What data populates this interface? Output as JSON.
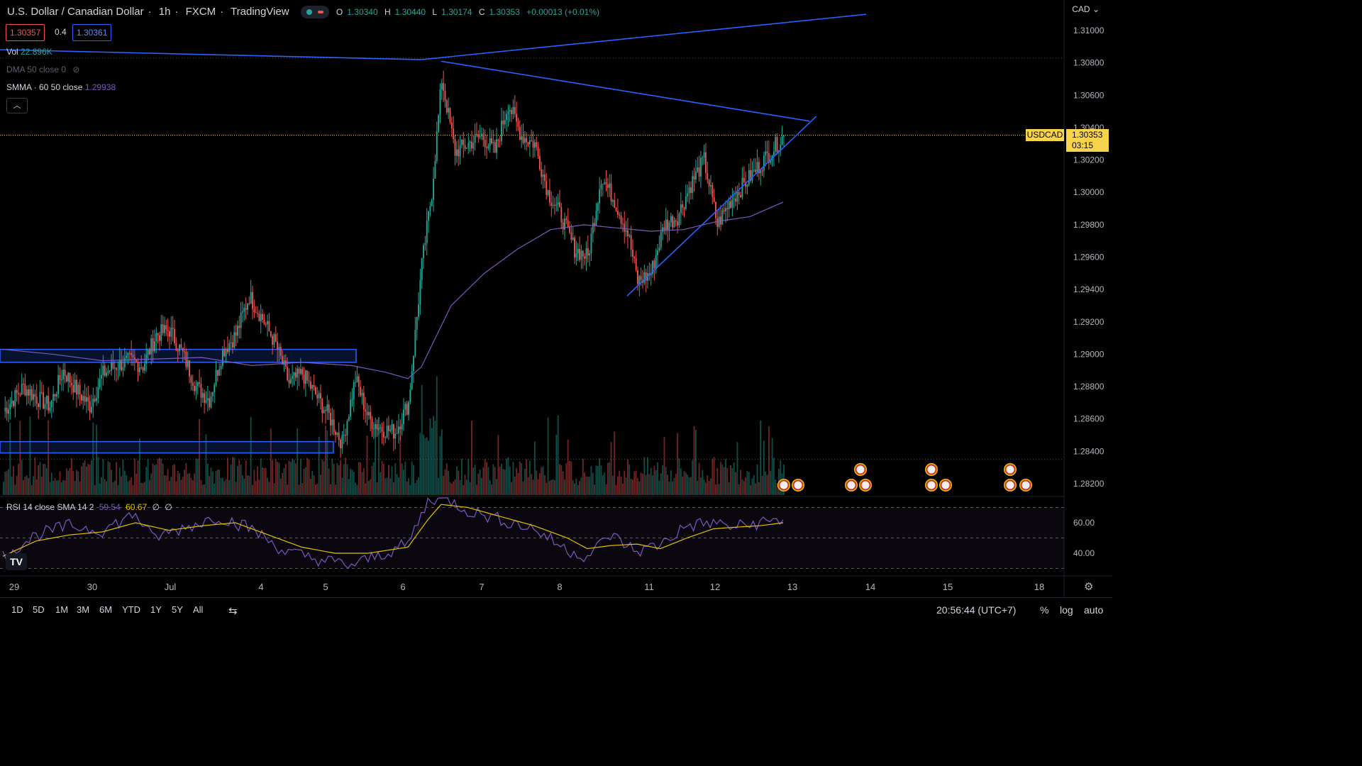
{
  "header": {
    "title": "U.S. Dollar / Canadian Dollar",
    "interval": "1h",
    "exchange": "FXCM",
    "source": "TradingView",
    "ohlc": {
      "o_label": "O",
      "o": "1.30340",
      "h_label": "H",
      "h": "1.30440",
      "l_label": "L",
      "l": "1.30174",
      "c_label": "C",
      "c": "1.30353",
      "change": "+0.00013 (+0.01%)"
    },
    "bid": "1.30357",
    "spread": "0.4",
    "ask": "1.30361",
    "currency": "CAD"
  },
  "legend": {
    "vol_label": "Vol",
    "vol_value": "22.896K",
    "dma_label": "DMA 50 close 0",
    "smma_label": "SMMA · 60 50 close",
    "smma_value": "1.29938",
    "collapse_icon": "chevron-up-icon"
  },
  "rsi_legend": {
    "label": "RSI 14 close SMA 14 2",
    "rsi_value": "59.54",
    "sma_value": "60.67",
    "extra1": "∅",
    "extra2": "∅"
  },
  "price_tag": {
    "symbol": "USDCAD",
    "price": "1.30353",
    "countdown": "03:15"
  },
  "time_axis": [
    "29",
    "30",
    "Jul",
    "4",
    "5",
    "6",
    "7",
    "8",
    "11",
    "12",
    "13",
    "14",
    "15",
    "18"
  ],
  "bottom": {
    "ranges": [
      "1D",
      "5D",
      "1M",
      "3M",
      "6M",
      "YTD",
      "1Y",
      "5Y",
      "All"
    ],
    "clock": "20:56:44 (UTC+7)",
    "percent": "%",
    "log": "log",
    "auto": "auto"
  },
  "colors": {
    "up": "#26a69a",
    "down": "#ef5350",
    "trendline": "#2962ff",
    "smma": "#7e57c2",
    "rsi": "#7e57c2",
    "rsi_sma": "#e5c100",
    "price_tag": "#f7d44c",
    "bg": "#000000"
  },
  "chart_data": [
    {
      "type": "candlestick",
      "title": "U.S. Dollar / Canadian Dollar · 1h · FXCM",
      "y_ticks": [
        "1.31000",
        "1.30800",
        "1.30600",
        "1.30400",
        "1.30200",
        "1.30000",
        "1.29800",
        "1.29600",
        "1.29400",
        "1.29200",
        "1.29000",
        "1.28800",
        "1.28600",
        "1.28400",
        "1.28200"
      ],
      "ylim": [
        1.281,
        1.312
      ],
      "x_ticks": [
        "29",
        "30",
        "Jul",
        "4",
        "5",
        "6",
        "7",
        "8",
        "11",
        "12",
        "13",
        "14",
        "15",
        "18"
      ],
      "last_price": 1.30353,
      "path_anchors": [
        [
          0,
          1.2865
        ],
        [
          12,
          1.288
        ],
        [
          20,
          1.2873
        ],
        [
          28,
          1.2868
        ],
        [
          36,
          1.289
        ],
        [
          44,
          1.2878
        ],
        [
          52,
          1.2868
        ],
        [
          60,
          1.2888
        ],
        [
          68,
          1.2893
        ],
        [
          76,
          1.2896
        ],
        [
          84,
          1.2893
        ],
        [
          92,
          1.2912
        ],
        [
          100,
          1.2915
        ],
        [
          108,
          1.29
        ],
        [
          116,
          1.288
        ],
        [
          124,
          1.2872
        ],
        [
          132,
          1.2902
        ],
        [
          140,
          1.2912
        ],
        [
          148,
          1.2936
        ],
        [
          156,
          1.2922
        ],
        [
          164,
          1.2906
        ],
        [
          172,
          1.2882
        ],
        [
          180,
          1.2888
        ],
        [
          188,
          1.2875
        ],
        [
          196,
          1.2862
        ],
        [
          204,
          1.2845
        ],
        [
          212,
          1.2885
        ],
        [
          220,
          1.286
        ],
        [
          228,
          1.2854
        ],
        [
          236,
          1.2852
        ],
        [
          244,
          1.287
        ],
        [
          252,
          1.2955
        ],
        [
          258,
          1.3
        ],
        [
          264,
          1.307
        ],
        [
          272,
          1.3025
        ],
        [
          280,
          1.303
        ],
        [
          288,
          1.3035
        ],
        [
          296,
          1.3025
        ],
        [
          304,
          1.3055
        ],
        [
          312,
          1.3035
        ],
        [
          320,
          1.303
        ],
        [
          328,
          1.3
        ],
        [
          336,
          1.2985
        ],
        [
          344,
          1.2965
        ],
        [
          352,
          1.296
        ],
        [
          360,
          1.301
        ],
        [
          368,
          1.2995
        ],
        [
          376,
          1.2975
        ],
        [
          382,
          1.2945
        ],
        [
          390,
          1.295
        ],
        [
          398,
          1.298
        ],
        [
          406,
          1.2985
        ],
        [
          414,
          1.3005
        ],
        [
          422,
          1.302
        ],
        [
          430,
          1.298
        ],
        [
          438,
          1.2995
        ],
        [
          446,
          1.3005
        ],
        [
          454,
          1.3015
        ],
        [
          462,
          1.3025
        ],
        [
          470,
          1.3035
        ]
      ],
      "trendlines": [
        {
          "name": "upper-resistance",
          "from": [
            252,
            1.3082
          ],
          "to": [
            520,
            1.311
          ]
        },
        {
          "name": "triangle-upper",
          "from": [
            264,
            1.3081
          ],
          "to": [
            486,
            1.3044
          ]
        },
        {
          "name": "triangle-lower",
          "from": [
            376,
            1.2936
          ],
          "to": [
            490,
            1.3047
          ]
        }
      ],
      "zones": [
        {
          "name": "resistance-zone",
          "y1": 1.2903,
          "y2": 1.2895
        },
        {
          "name": "support-zone",
          "y1": 1.2846,
          "y2": 1.2839
        }
      ],
      "smma": [
        [
          0,
          1.2903
        ],
        [
          30,
          1.29
        ],
        [
          60,
          1.2896
        ],
        [
          90,
          1.2897
        ],
        [
          120,
          1.2898
        ],
        [
          150,
          1.2893
        ],
        [
          180,
          1.2895
        ],
        [
          210,
          1.2893
        ],
        [
          230,
          1.2889
        ],
        [
          244,
          1.2885
        ],
        [
          252,
          1.2892
        ],
        [
          270,
          1.293
        ],
        [
          290,
          1.295
        ],
        [
          310,
          1.2965
        ],
        [
          330,
          1.2977
        ],
        [
          350,
          1.298
        ],
        [
          370,
          1.2978
        ],
        [
          390,
          1.2976
        ],
        [
          410,
          1.2977
        ],
        [
          430,
          1.2982
        ],
        [
          450,
          1.2985
        ],
        [
          470,
          1.2994
        ]
      ]
    },
    {
      "type": "line",
      "title": "RSI 14 close SMA 14 2",
      "y_ticks": [
        "60.00",
        "40.00"
      ],
      "ylim": [
        30,
        80
      ],
      "bands": [
        70,
        50,
        30
      ],
      "series": [
        {
          "name": "RSI",
          "anchors": [
            [
              0,
              38
            ],
            [
              20,
              52
            ],
            [
              40,
              58
            ],
            [
              60,
              55
            ],
            [
              80,
              66
            ],
            [
              90,
              50
            ],
            [
              110,
              57
            ],
            [
              130,
              64
            ],
            [
              150,
              56
            ],
            [
              170,
              41
            ],
            [
              190,
              36
            ],
            [
              210,
              32
            ],
            [
              230,
              40
            ],
            [
              244,
              46
            ],
            [
              256,
              74
            ],
            [
              264,
              78
            ],
            [
              280,
              68
            ],
            [
              300,
              62
            ],
            [
              320,
              56
            ],
            [
              340,
              42
            ],
            [
              352,
              38
            ],
            [
              366,
              52
            ],
            [
              382,
              41
            ],
            [
              396,
              46
            ],
            [
              412,
              58
            ],
            [
              428,
              60
            ],
            [
              440,
              57
            ],
            [
              456,
              60
            ],
            [
              470,
              62
            ]
          ]
        },
        {
          "name": "RSI SMA",
          "anchors": [
            [
              0,
              38
            ],
            [
              20,
              48
            ],
            [
              40,
              52
            ],
            [
              60,
              54
            ],
            [
              80,
              60
            ],
            [
              100,
              55
            ],
            [
              120,
              58
            ],
            [
              140,
              60
            ],
            [
              160,
              52
            ],
            [
              180,
              44
            ],
            [
              200,
              40
            ],
            [
              220,
              40
            ],
            [
              244,
              44
            ],
            [
              256,
              62
            ],
            [
              264,
              72
            ],
            [
              280,
              70
            ],
            [
              300,
              64
            ],
            [
              320,
              58
            ],
            [
              340,
              50
            ],
            [
              352,
              43
            ],
            [
              366,
              45
            ],
            [
              382,
              46
            ],
            [
              396,
              43
            ],
            [
              412,
              50
            ],
            [
              428,
              56
            ],
            [
              440,
              57
            ],
            [
              456,
              58
            ],
            [
              470,
              60
            ]
          ]
        }
      ]
    }
  ]
}
